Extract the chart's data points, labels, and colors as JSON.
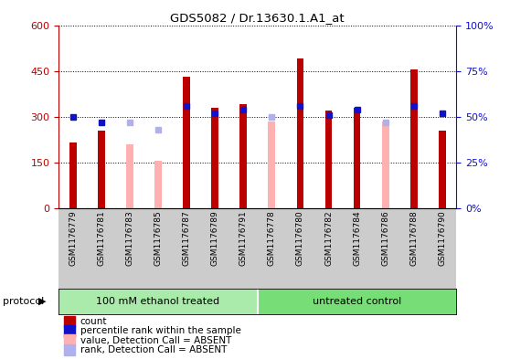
{
  "title": "GDS5082 / Dr.13630.1.A1_at",
  "samples": [
    "GSM1176779",
    "GSM1176781",
    "GSM1176783",
    "GSM1176785",
    "GSM1176787",
    "GSM1176789",
    "GSM1176791",
    "GSM1176778",
    "GSM1176780",
    "GSM1176782",
    "GSM1176784",
    "GSM1176786",
    "GSM1176788",
    "GSM1176790"
  ],
  "count": [
    215,
    255,
    null,
    null,
    430,
    330,
    340,
    null,
    490,
    320,
    330,
    null,
    455,
    255
  ],
  "percentile": [
    50,
    47,
    null,
    null,
    56,
    52,
    54,
    null,
    56,
    51,
    54,
    null,
    56,
    52
  ],
  "absent_value": [
    null,
    null,
    210,
    155,
    null,
    null,
    null,
    285,
    null,
    null,
    null,
    285,
    null,
    null
  ],
  "absent_rank": [
    null,
    null,
    47,
    43,
    null,
    null,
    null,
    50,
    null,
    null,
    null,
    47,
    null,
    null
  ],
  "group_labels": [
    "100 mM ethanol treated",
    "untreated control"
  ],
  "ethanol_count": 7,
  "total_count": 14,
  "ylim_left": [
    0,
    600
  ],
  "ylim_right": [
    0,
    100
  ],
  "yticks_left": [
    0,
    150,
    300,
    450,
    600
  ],
  "yticks_right": [
    0,
    25,
    50,
    75,
    100
  ],
  "count_color": "#bb0000",
  "percentile_color": "#1111cc",
  "absent_value_color": "#ffb0b0",
  "absent_rank_color": "#b0b0ee",
  "axis_bg": "#cccccc",
  "group_bg_light": "#aaeaaa",
  "group_bg_dark": "#77dd77",
  "bar_width": 0.25
}
